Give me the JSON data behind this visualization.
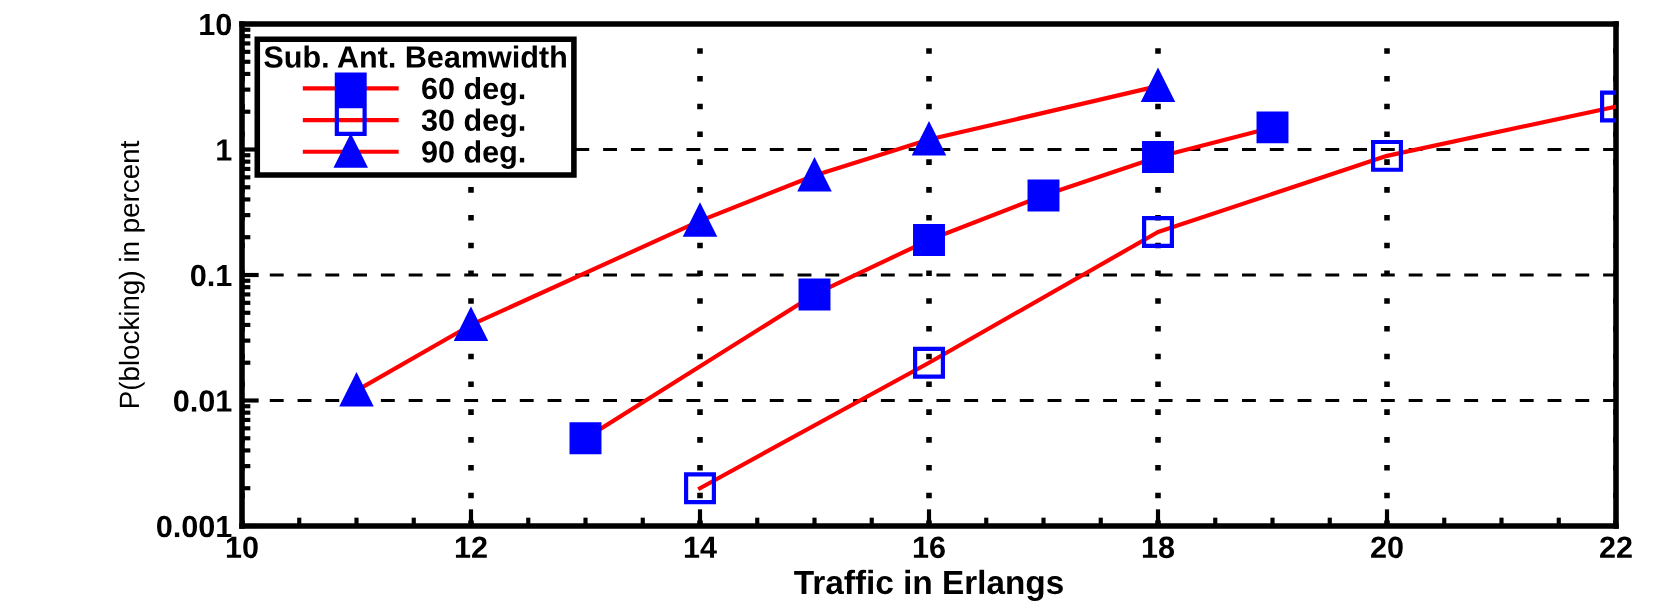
{
  "chart_data": {
    "type": "line",
    "xlabel": "Traffic in Erlangs",
    "ylabel": "P(blocking) in percent",
    "legend_title": "Sub. Ant. Beamwidth",
    "legend": "top left",
    "log": "y",
    "grid": true,
    "line_style": "solid",
    "xlim": [
      10,
      22
    ],
    "xticks": [
      10,
      12,
      14,
      16,
      18,
      20,
      22
    ],
    "ylim": [
      0.001,
      10
    ],
    "yticks": [
      0.001,
      0.01,
      0.1,
      1,
      10
    ],
    "series": [
      {
        "name": "60 deg.",
        "color": "#0000ff",
        "marker": "square",
        "x": [
          13,
          15,
          16,
          17,
          18,
          19
        ],
        "values": [
          0.005,
          0.07,
          0.19,
          0.43,
          0.87,
          1.5
        ]
      },
      {
        "name": "30 deg.",
        "color": "#0000ff",
        "marker": "square_open",
        "x": [
          14,
          16,
          18,
          20,
          22
        ],
        "values": [
          0.002,
          0.02,
          0.22,
          0.89,
          2.2
        ]
      },
      {
        "name": "90 deg.",
        "color": "#0000ff",
        "marker": "triangle",
        "x": [
          11,
          12,
          14,
          15,
          16,
          18
        ],
        "values": [
          0.012,
          0.04,
          0.27,
          0.62,
          1.2,
          3.2
        ]
      }
    ]
  }
}
